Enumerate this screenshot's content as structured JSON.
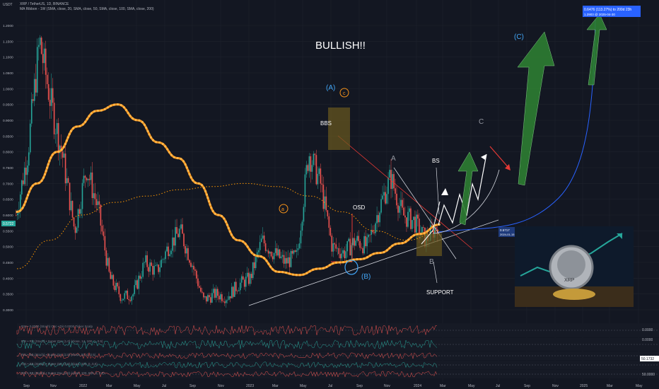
{
  "header": {
    "unit": "USDT",
    "symbol": "XRP / TetherUS, 1D, BINANCE",
    "indicator": "MA Ribbon - 1W (SMA, close, 20, SMA, close, 50, SMA, close, 100, SMA, close, 200)"
  },
  "annotations": {
    "bullish": "BULLISH!!",
    "wave_A_paren": "(A)",
    "wave_c_circle": "c",
    "bbs": "BBS",
    "osd": "OSD",
    "wave_a_circle": "a",
    "wave_A": "A",
    "bs": "BS",
    "wave_C": "C",
    "wave_C_paren": "(C)",
    "wave_B_paren": "(B)",
    "wave_B": "B",
    "support": "SUPPORT",
    "measure_line1": "0.6476 (113.27%) to 200d 23h",
    "measure_line2": "1.2903 @ 2025-04-30",
    "price_tag_small": "0.5717",
    "price_tag_small_date": "2024-01-15",
    "logo_text": "XRP"
  },
  "colors": {
    "background": "#131722",
    "candle_up": "#26a69a",
    "candle_down": "#ef5350",
    "ma_orange": "#f7931a",
    "ma_dotted": "#ff9800",
    "arrow_green": "#2e7d32",
    "curve_blue": "#2962ff",
    "wave_blue": "#42a5f5",
    "resistance_red": "#e53935"
  },
  "price_axis": {
    "labels": [
      "1.2000",
      "1.1500",
      "1.1000",
      "1.0500",
      "1.0000",
      "0.9500",
      "0.9000",
      "0.8500",
      "0.8000",
      "0.7500",
      "0.7000",
      "0.6500",
      "0.6000",
      "0.5500",
      "0.5000",
      "0.4500",
      "0.4000",
      "0.3500",
      "0.3000"
    ],
    "current_price": "0.5722"
  },
  "time_axis": {
    "labels": [
      "Sep",
      "Nov",
      "2022",
      "Mar",
      "May",
      "Jul",
      "Sep",
      "Nov",
      "2023",
      "Mar",
      "May",
      "Jul",
      "Sep",
      "Nov",
      "2024",
      "Mar",
      "May",
      "Jul",
      "Sep",
      "Nov",
      "2025",
      "Mar",
      "May"
    ]
  },
  "indicator_panels": {
    "labels": [
      "RSI • 0.0000 (Stoch) Osc • Dir 0.0000 Ticker Scalp",
      "RSI • RS (Stoch) • Super Osc (1.0) (close, 14, 100, 1, 0.5)",
      "RSI • BB (Stoch) • Super Osc (2.0) (close, 50, 0, 0.5)",
      "RSI • BB (Stoch) • Super Osc (3.0) (close, 100, 0, 0.5)",
      "RSI • BB (Stoch) • Super Osc (4.0) (close, 100, 500, 2, 0.5)"
    ],
    "right_values": [
      "0.0000",
      "0.0000",
      "50.1732",
      "50.0000"
    ]
  },
  "chart_data": {
    "type": "line",
    "title": "XRP / TetherUS, 1D, BINANCE",
    "ylim": [
      0.3,
      1.2
    ],
    "x_labels": [
      "Sep",
      "Nov",
      "2022",
      "Mar",
      "May",
      "Jul",
      "Sep",
      "Nov",
      "2023",
      "Mar",
      "May",
      "Jul",
      "Sep",
      "Nov",
      "2024"
    ],
    "series": [
      {
        "price_close_approx": true,
        "values": [
          0.6,
          0.8,
          1.15,
          0.95,
          0.78,
          0.55,
          0.75,
          0.62,
          0.4,
          0.34,
          0.35,
          0.45,
          0.42,
          0.5,
          0.55,
          0.45,
          0.33,
          0.35,
          0.34,
          0.38,
          0.4,
          0.52,
          0.48,
          0.45,
          0.47,
          0.8,
          0.7,
          0.5,
          0.48,
          0.52,
          0.5,
          0.62,
          0.72,
          0.6,
          0.58,
          0.52,
          0.57
        ]
      },
      {
        "name": "SMA 20",
        "values": [
          0.61,
          0.7,
          0.8,
          0.88,
          0.93,
          0.95,
          0.9,
          0.83,
          0.78,
          0.7,
          0.6,
          0.52,
          0.47,
          0.42,
          0.41,
          0.43,
          0.45,
          0.46,
          0.48,
          0.51,
          0.54,
          0.57
        ]
      },
      {
        "name": "SMA 200",
        "values": [
          0.43,
          0.52,
          0.6,
          0.64,
          0.66,
          0.68,
          0.69,
          0.7,
          0.69,
          0.66,
          0.61,
          0.55,
          0.52,
          0.55
        ]
      }
    ]
  }
}
